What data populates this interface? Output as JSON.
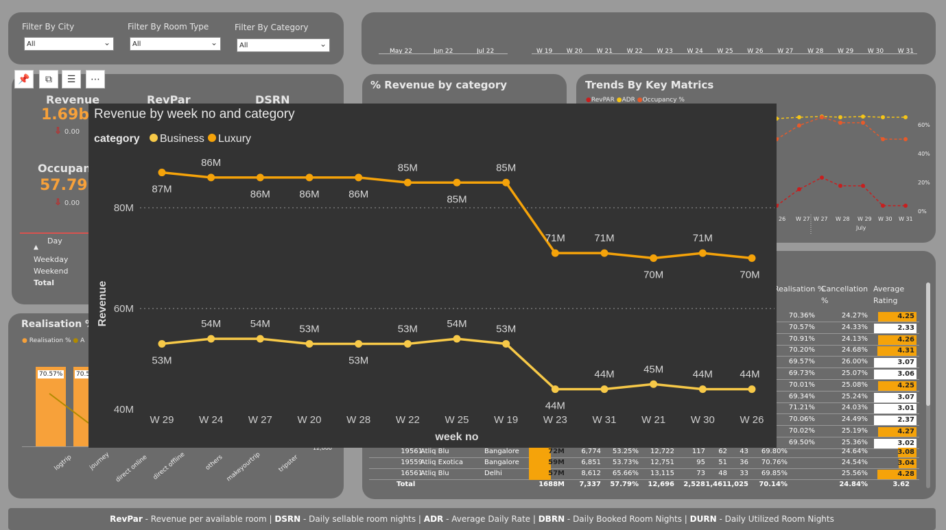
{
  "filters": {
    "city": {
      "label": "Filter By City",
      "value": "All"
    },
    "room_type": {
      "label": "Filter By Room Type",
      "value": "All"
    },
    "category": {
      "label": "Filter By Category",
      "value": "All"
    }
  },
  "timeline": {
    "months": [
      "May 22",
      "Jun 22",
      "Jul 22"
    ],
    "weeks": [
      "W 19",
      "W 20",
      "W 21",
      "W 22",
      "W 23",
      "W 24",
      "W 25",
      "W 26",
      "W 27",
      "W 28",
      "W 29",
      "W 30",
      "W 31"
    ]
  },
  "kpis": {
    "revenue": {
      "title": "Revenue",
      "value": "1.69b",
      "delta": "0.00"
    },
    "revpar": {
      "title": "RevPar"
    },
    "dsrn": {
      "title": "DSRN"
    },
    "occupancy": {
      "title": "Occupanc",
      "value": "57.79",
      "delta": "0.00"
    }
  },
  "day_table": {
    "header": "Day",
    "rows": [
      "Weekday",
      "Weekend"
    ],
    "total": "Total"
  },
  "realisation_panel": {
    "title": "Realisation % a",
    "legend": [
      "Realisation %",
      "A"
    ],
    "bar_labels": [
      "70.57%",
      "70.5"
    ],
    "categories": [
      "logtrip",
      "journey",
      "direct online",
      "direct offline",
      "others",
      "makeyourtrip",
      "tripster"
    ],
    "axis_value": "12,000"
  },
  "pct_revenue_panel": {
    "title": "% Revenue by category"
  },
  "trends_panel": {
    "title": "Trends By Key Matrics",
    "legend": [
      "RevPAR",
      "ADR",
      "Occupancy %"
    ],
    "y_ticks": [
      "60%",
      "40%",
      "20%",
      "0%"
    ],
    "x_ticks": [
      "26",
      "W 27",
      "W 27",
      "W 28",
      "W 29",
      "W 30",
      "W 31"
    ],
    "x_group": "July",
    "colors": {
      "revpar": "#c81e1e",
      "adr": "#f5c518",
      "occupancy": "#e85a2a"
    }
  },
  "toolbar": {
    "icons": [
      "pin-icon",
      "copy-icon",
      "filter-icon",
      "more-icon"
    ]
  },
  "overlay_chart": {
    "title": "Revenue by week no and category",
    "legend_title": "category",
    "xlabel": "week no",
    "ylabel": "Revenue",
    "y_ticks": [
      "80M",
      "60M",
      "40M"
    ]
  },
  "chart_data": {
    "type": "line",
    "title": "Revenue by week no and category",
    "xlabel": "week no",
    "ylabel": "Revenue",
    "ylim": [
      40,
      88
    ],
    "categories": [
      "W 29",
      "W 24",
      "W 27",
      "W 20",
      "W 28",
      "W 22",
      "W 25",
      "W 19",
      "W 23",
      "W 31",
      "W 21",
      "W 30",
      "W 26"
    ],
    "series": [
      {
        "name": "Luxury",
        "color": "#f5a30a",
        "values": [
          87,
          86,
          86,
          86,
          86,
          85,
          85,
          85,
          71,
          71,
          70,
          71,
          70
        ],
        "labels": [
          "87M",
          "86M",
          "86M",
          "86M",
          "86M",
          "85M",
          "85M",
          "85M",
          "71M",
          "71M",
          "70M",
          "71M",
          "70M"
        ]
      },
      {
        "name": "Business",
        "color": "#f7c948",
        "values": [
          53,
          54,
          54,
          53,
          53,
          53,
          54,
          53,
          44,
          44,
          45,
          44,
          44
        ],
        "labels": [
          "53M",
          "54M",
          "54M",
          "53M",
          "53M",
          "53M",
          "54M",
          "53M",
          "44M",
          "44M",
          "45M",
          "44M",
          "44M"
        ]
      }
    ]
  },
  "hotel_table": {
    "headers": [
      "Realisation %",
      "Cancellation %",
      "Average Rating"
    ],
    "rows": [
      {
        "realisation": "70.36%",
        "cancellation": "24.27%",
        "rating": "4.25"
      },
      {
        "realisation": "70.57%",
        "cancellation": "24.33%",
        "rating": "2.33"
      },
      {
        "realisation": "70.91%",
        "cancellation": "24.13%",
        "rating": "4.26"
      },
      {
        "realisation": "70.20%",
        "cancellation": "24.68%",
        "rating": "4.31"
      },
      {
        "realisation": "69.57%",
        "cancellation": "26.00%",
        "rating": "3.07"
      },
      {
        "realisation": "69.73%",
        "cancellation": "25.07%",
        "rating": "3.06"
      },
      {
        "realisation": "70.01%",
        "cancellation": "25.08%",
        "rating": "4.25"
      },
      {
        "realisation": "69.34%",
        "cancellation": "25.24%",
        "rating": "3.07"
      },
      {
        "realisation": "71.21%",
        "cancellation": "24.03%",
        "rating": "3.01"
      },
      {
        "realisation": "70.06%",
        "cancellation": "24.49%",
        "rating": "2.37"
      },
      {
        "realisation": "70.02%",
        "cancellation": "25.19%",
        "rating": "4.27"
      },
      {
        "realisation": "69.50%",
        "cancellation": "25.36%",
        "rating": "3.02"
      }
    ],
    "full_rows": [
      {
        "id": "19561",
        "name": "Atliq Blu",
        "city": "Bangalore",
        "revenue": "72M",
        "c1": "6,774",
        "c2": "53.25%",
        "c3": "12,722",
        "c4": "117",
        "c5": "62",
        "c6": "43",
        "realisation": "69.80%",
        "cancellation": "24.64%",
        "rating": "3.08"
      },
      {
        "id": "19559",
        "name": "Atliq Exotica",
        "city": "Bangalore",
        "revenue": "59M",
        "c1": "6,851",
        "c2": "53.73%",
        "c3": "12,751",
        "c4": "95",
        "c5": "51",
        "c6": "36",
        "realisation": "70.76%",
        "cancellation": "24.54%",
        "rating": "3.04"
      },
      {
        "id": "16561",
        "name": "Atliq Blu",
        "city": "Delhi",
        "revenue": "57M",
        "c1": "8,612",
        "c2": "65.66%",
        "c3": "13,115",
        "c4": "73",
        "c5": "48",
        "c6": "33",
        "realisation": "69.85%",
        "cancellation": "25.56%",
        "rating": "4.28"
      }
    ],
    "total": {
      "label": "Total",
      "revenue": "1688M",
      "c1": "7,337",
      "c2": "57.79%",
      "c3": "12,696",
      "c4": "2,528",
      "c5": "1,461",
      "c6": "1,025",
      "realisation": "70.14%",
      "cancellation": "24.84%",
      "rating": "3.62"
    }
  },
  "footer": {
    "parts": [
      {
        "abbr": "RevPar",
        "desc": " - Revenue per available room | "
      },
      {
        "abbr": "DSRN",
        "desc": " - Daily sellable room nights | "
      },
      {
        "abbr": "ADR",
        "desc": " - Average Daily Rate | "
      },
      {
        "abbr": "DBRN",
        "desc": " - Daily Booked Room Nights | "
      },
      {
        "abbr": "DURN",
        "desc": " - Daily Utilized Room Nights"
      }
    ]
  }
}
